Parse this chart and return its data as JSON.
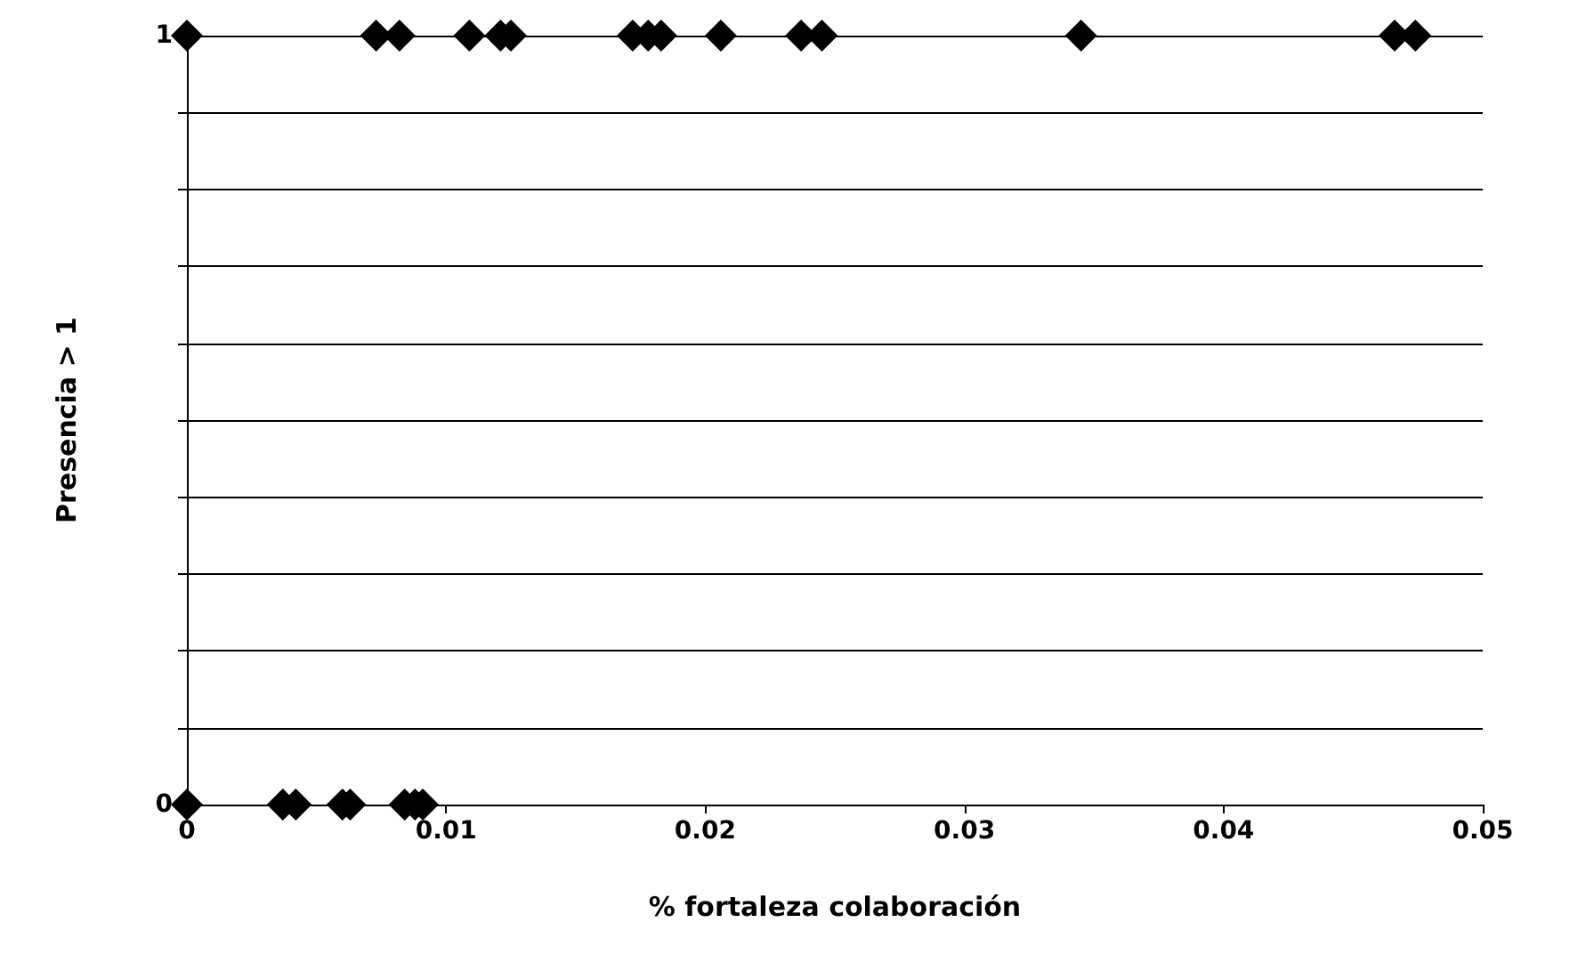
{
  "chart_data": {
    "type": "scatter",
    "xlabel": "% fortaleza colaboración",
    "ylabel": "Presencia > 1",
    "series": [
      {
        "color": "#000000",
        "x": [
          0,
          0.0073,
          0.0082,
          0.0109,
          0.0121,
          0.0125,
          0.0172,
          0.0178,
          0.0183,
          0.0206,
          0.0237,
          0.0245,
          0.0345,
          0.0466,
          0.0474
        ],
        "values": [
          1,
          1,
          1,
          1,
          1,
          1,
          1,
          1,
          1,
          1,
          1,
          1,
          1,
          1,
          1
        ]
      },
      {
        "color": "#000000",
        "x": [
          0,
          0.0037,
          0.0042,
          0.006,
          0.0063,
          0.0084,
          0.0088,
          0.0091
        ],
        "values": [
          0,
          0,
          0,
          0,
          0,
          0,
          0,
          0
        ]
      }
    ],
    "xlim": [
      0,
      0.05
    ],
    "xticks": [
      0,
      0.01,
      0.02,
      0.03,
      0.04,
      0.05
    ],
    "ylim": [
      0,
      1
    ],
    "yticks": [
      0,
      {
        "value": 0.1,
        "label": null
      },
      {
        "value": 0.2,
        "label": null
      },
      {
        "value": 0.3,
        "label": null
      },
      {
        "value": 0.4,
        "label": null
      },
      {
        "value": 0.5,
        "label": null
      },
      {
        "value": 0.6,
        "label": null
      },
      {
        "value": 0.7,
        "label": null
      },
      {
        "value": 0.8,
        "label": null
      },
      {
        "value": 0.9,
        "label": null
      },
      1
    ],
    "grid": "y",
    "marker": "diamond"
  }
}
